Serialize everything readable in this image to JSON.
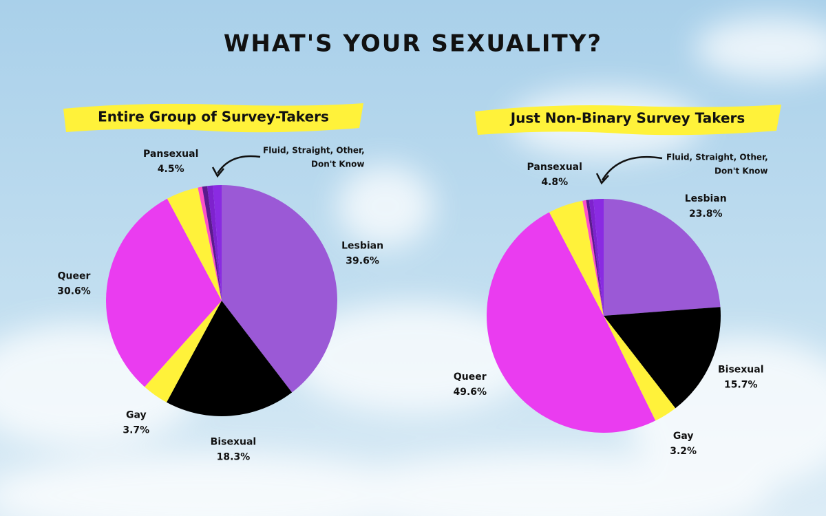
{
  "title": "WHAT'S YOUR SEXUALITY?",
  "chart_data": [
    {
      "type": "pie",
      "title": "Entire Group of Survey-Takers",
      "categories": [
        "Lesbian",
        "Bisexual",
        "Gay",
        "Queer",
        "Pansexual",
        null,
        null,
        null,
        null
      ],
      "values": [
        39.6,
        18.3,
        3.7,
        30.6,
        4.5,
        0.6,
        0.7,
        0.8,
        1.2
      ],
      "value_labels": [
        "39.6%",
        "18.3%",
        "3.7%",
        "30.6%",
        "4.5%",
        null,
        null,
        null,
        null
      ],
      "colors": [
        "#9b59d6",
        "#000000",
        "#fff23a",
        "#ea3cf0",
        "#fff23a",
        "#ff4fc8",
        "#5b1a8e",
        "#7e22ce",
        "#8a2be2"
      ],
      "annotation": [
        "Fluid, Straight, Other,",
        "Don't Know"
      ]
    },
    {
      "type": "pie",
      "title": "Just Non-Binary Survey Takers",
      "categories": [
        "Lesbian",
        "Bisexual",
        "Gay",
        "Queer",
        "Pansexual",
        null,
        null,
        null,
        null
      ],
      "values": [
        23.8,
        15.7,
        3.2,
        49.6,
        4.8,
        0.5,
        0.4,
        0.6,
        1.4
      ],
      "value_labels": [
        "23.8%",
        "15.7%",
        "3.2%",
        "49.6%",
        "4.8%",
        null,
        null,
        null,
        null
      ],
      "colors": [
        "#9b59d6",
        "#000000",
        "#fff23a",
        "#ea3cf0",
        "#fff23a",
        "#ff4fc8",
        "#5b1a8e",
        "#7e22ce",
        "#8a2be2"
      ],
      "annotation": [
        "Fluid, Straight, Other,",
        "Don't Know"
      ]
    }
  ]
}
